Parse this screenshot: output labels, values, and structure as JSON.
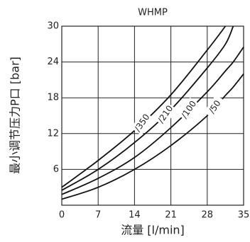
{
  "chart_data": {
    "type": "line",
    "title": "WHMP",
    "x_label": "流量 [l/min]",
    "y_label": "最小调节压力P口 [bar]",
    "x": [
      0,
      7,
      14,
      21,
      28,
      31.5,
      33,
      35
    ],
    "series": [
      {
        "name": "/350",
        "color": "#111111",
        "values": [
          3,
          7.5,
          12.5,
          18.5,
          26,
          30,
          null,
          null
        ]
      },
      {
        "name": "/210",
        "color": "#111111",
        "values": [
          2.5,
          6,
          10.5,
          16,
          23,
          27,
          30,
          null
        ]
      },
      {
        "name": "/100",
        "color": "#111111",
        "values": [
          1.8,
          4.5,
          8,
          13,
          19,
          22.5,
          24,
          26.5
        ]
      },
      {
        "name": "/50",
        "color": "#111111",
        "values": [
          1,
          3,
          6,
          10,
          15,
          18.4,
          19.8,
          22
        ]
      }
    ],
    "xlim": [
      0,
      35
    ],
    "xticks": [
      0,
      7,
      14,
      21,
      28,
      35
    ],
    "ylim": [
      0,
      30
    ],
    "yticks": [
      6,
      12,
      18,
      24,
      30
    ],
    "grid": true
  }
}
